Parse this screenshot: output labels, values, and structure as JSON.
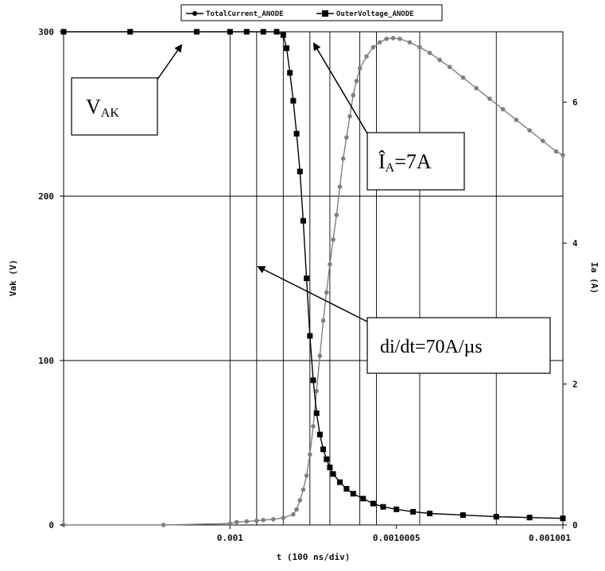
{
  "chart_data": {
    "type": "line",
    "xlabel": "t (100 ns/div)",
    "ylabel": "Vak (V)",
    "y2label": "Ia (A)",
    "xlim": [
      0.0009995,
      0.001001
    ],
    "ylim": [
      0,
      300
    ],
    "y2lim": [
      0,
      7
    ],
    "xticks": [
      {
        "value": 0.001,
        "label": "0.001"
      },
      {
        "value": 0.0010005,
        "label": "0.0010005"
      },
      {
        "value": 0.001001,
        "label": "0.001001"
      }
    ],
    "yticks": [
      {
        "value": 0,
        "label": "0"
      },
      {
        "value": 100,
        "label": "100"
      },
      {
        "value": 200,
        "label": "200"
      },
      {
        "value": 300,
        "label": "300"
      }
    ],
    "y2ticks": [
      {
        "value": 0,
        "label": "0"
      },
      {
        "value": 2,
        "label": "2"
      },
      {
        "value": 4,
        "label": "4"
      },
      {
        "value": 6,
        "label": "6"
      }
    ],
    "vgrid": [
      0.001,
      0.00100008,
      0.00100016,
      0.00100024,
      0.0010003,
      0.00100039,
      0.00100044,
      0.00100057,
      0.0010008
    ],
    "hgrid": [
      100,
      200
    ],
    "legend_position": "top-center",
    "series": [
      {
        "name": "TotalCurrent_ANODE",
        "axis": "right",
        "color": "#808080",
        "marker": "circle",
        "x": [
          0.0009995,
          0.0009998,
          0.001,
          0.00100002,
          0.00100005,
          0.00100008,
          0.0010001,
          0.00100013,
          0.00100016,
          0.00100019,
          0.0010002,
          0.00100021,
          0.00100022,
          0.00100023,
          0.00100024,
          0.00100025,
          0.00100026,
          0.00100027,
          0.00100028,
          0.00100029,
          0.0010003,
          0.00100031,
          0.00100032,
          0.00100033,
          0.00100034,
          0.00100035,
          0.00100036,
          0.00100037,
          0.00100038,
          0.00100039,
          0.00100041,
          0.00100043,
          0.00100045,
          0.00100047,
          0.00100049,
          0.00100051,
          0.00100054,
          0.00100057,
          0.0010006,
          0.00100063,
          0.00100066,
          0.0010007,
          0.00100074,
          0.00100078,
          0.00100082,
          0.00100086,
          0.0010009,
          0.00100094,
          0.00100098,
          0.001001
        ],
        "y": [
          0,
          0,
          0.02,
          0.04,
          0.05,
          0.06,
          0.07,
          0.08,
          0.1,
          0.15,
          0.22,
          0.35,
          0.5,
          0.7,
          1.0,
          1.4,
          1.9,
          2.4,
          2.9,
          3.3,
          3.7,
          4.05,
          4.4,
          4.8,
          5.2,
          5.5,
          5.8,
          6.1,
          6.3,
          6.48,
          6.65,
          6.78,
          6.85,
          6.9,
          6.91,
          6.9,
          6.85,
          6.78,
          6.7,
          6.6,
          6.5,
          6.35,
          6.2,
          6.05,
          5.9,
          5.75,
          5.6,
          5.45,
          5.3,
          5.25
        ]
      },
      {
        "name": "OuterVoltage_ANODE",
        "axis": "left",
        "color": "#000000",
        "marker": "square",
        "x": [
          0.0009995,
          0.0009997,
          0.0009999,
          0.001,
          0.00100005,
          0.0010001,
          0.00100014,
          0.00100016,
          0.00100017,
          0.00100018,
          0.00100019,
          0.0010002,
          0.00100021,
          0.00100022,
          0.00100023,
          0.00100024,
          0.00100025,
          0.00100026,
          0.00100027,
          0.00100028,
          0.00100029,
          0.0010003,
          0.00100031,
          0.00100033,
          0.00100035,
          0.00100037,
          0.0010004,
          0.00100043,
          0.00100046,
          0.0010005,
          0.00100055,
          0.0010006,
          0.0010007,
          0.0010008,
          0.0010009,
          0.001001
        ],
        "y": [
          300,
          300,
          300,
          300,
          300,
          300,
          300,
          298,
          290,
          275,
          258,
          238,
          215,
          185,
          150,
          115,
          88,
          68,
          55,
          46,
          40,
          35,
          31,
          26,
          22,
          19,
          16,
          13,
          11,
          9.5,
          8,
          7,
          6,
          5,
          4.5,
          4
        ]
      }
    ],
    "annotations": [
      {
        "id": "vak",
        "main": "V",
        "sub": "AK"
      },
      {
        "id": "ia",
        "main": "Î",
        "sub": "A",
        "rest": "=7A"
      },
      {
        "id": "didt",
        "text": "di/dt=70A/µs"
      }
    ]
  }
}
